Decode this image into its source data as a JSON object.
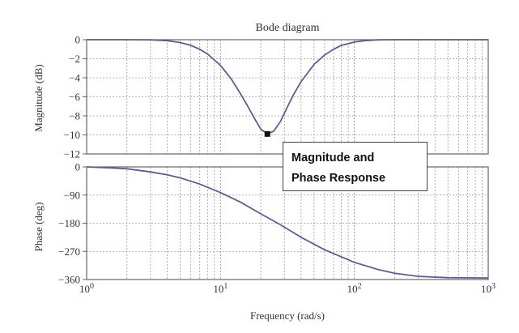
{
  "chart_data": [
    {
      "type": "line",
      "panel": "magnitude",
      "title": "Bode diagram",
      "xlabel": "",
      "ylabel": "Magnitude (dB)",
      "xscale": "log",
      "xlim": [
        1,
        1000
      ],
      "ylim": [
        -12,
        0
      ],
      "yticks": [
        "0",
        "−2",
        "−4",
        "−6",
        "−8",
        "−10",
        "−12"
      ],
      "grid": true,
      "series": [
        {
          "x": [
            1,
            2,
            3,
            4,
            5,
            6,
            7,
            8,
            10,
            12,
            14,
            16,
            18,
            20,
            22.4,
            25,
            28,
            31,
            35,
            40,
            50,
            60,
            70,
            80,
            100,
            120,
            150,
            200,
            300,
            500,
            1000
          ],
          "y": [
            0,
            0,
            -0.02,
            -0.1,
            -0.3,
            -0.6,
            -1.0,
            -1.5,
            -2.7,
            -4.1,
            -5.6,
            -7.0,
            -8.3,
            -9.4,
            -9.9,
            -9.6,
            -8.6,
            -7.3,
            -5.8,
            -4.4,
            -2.6,
            -1.6,
            -1.0,
            -0.6,
            -0.25,
            -0.1,
            -0.02,
            0,
            0,
            0,
            0
          ]
        }
      ],
      "marker": {
        "x": 22.4,
        "y": -9.9
      }
    },
    {
      "type": "line",
      "panel": "phase",
      "xlabel": "Frequency (rad/s)",
      "ylabel": "Phase (deg)",
      "xscale": "log",
      "xlim": [
        1,
        1000
      ],
      "ylim": [
        -360,
        0
      ],
      "yticks": [
        "0",
        "−90",
        "−180",
        "−270",
        "−360"
      ],
      "xticks": [
        {
          "base": "10",
          "exp": "0"
        },
        {
          "base": "10",
          "exp": "1"
        },
        {
          "base": "10",
          "exp": "2"
        },
        {
          "base": "10",
          "exp": "3"
        }
      ],
      "grid": true,
      "series": [
        {
          "x": [
            1,
            1.5,
            2,
            3,
            4,
            5,
            7,
            10,
            14,
            20,
            28,
            40,
            60,
            100,
            150,
            200,
            300,
            500,
            1000
          ],
          "y": [
            0,
            -3,
            -6,
            -16,
            -25,
            -35,
            -55,
            -82,
            -112,
            -150,
            -185,
            -225,
            -265,
            -305,
            -328,
            -340,
            -350,
            -354,
            -355
          ]
        }
      ]
    }
  ],
  "annotation": {
    "line1": "Magnitude and",
    "line2": "Phase Response"
  },
  "colors": {
    "curve": "#5a5f8f",
    "grid": "#9a9a9a",
    "axis": "#666666",
    "marker": "#111111"
  }
}
